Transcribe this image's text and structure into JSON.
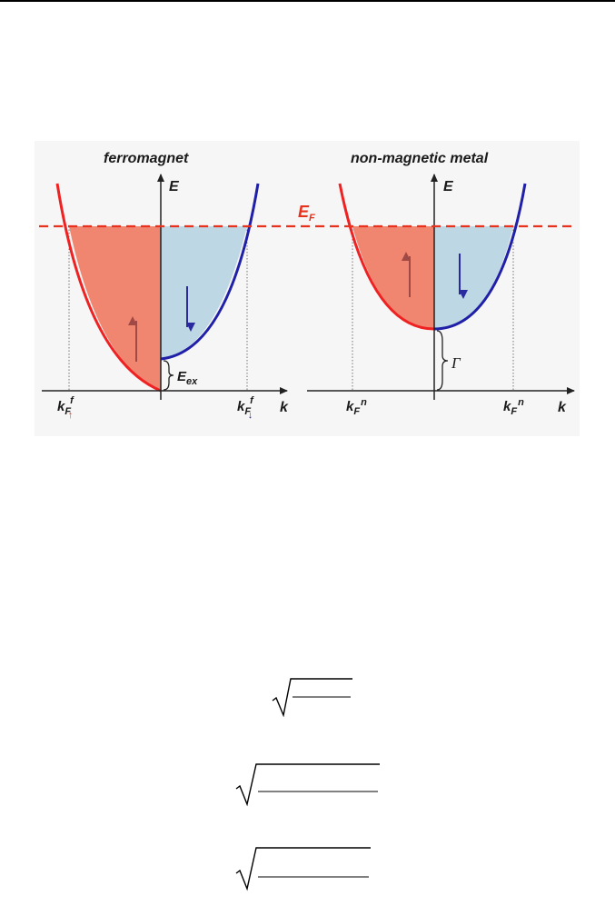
{
  "figure": {
    "left_panel": {
      "title": "ferromagnet",
      "e_axis": "E",
      "k_axis": "k",
      "fermi_label": "E",
      "fermi_sub": "F",
      "gap_label": "E",
      "gap_sub": "ex",
      "kf_left": {
        "base": "k",
        "sub": "F",
        "sup": "f",
        "spin": "↑"
      },
      "kf_right": {
        "base": "k",
        "sub": "F",
        "sup": "f",
        "spin": "↓"
      }
    },
    "right_panel": {
      "title": "non-magnetic metal",
      "e_axis": "E",
      "k_axis": "k",
      "gap_label": "Γ",
      "kf_left": {
        "base": "k",
        "sub": "F",
        "sup": "n"
      },
      "kf_right": {
        "base": "k",
        "sub": "F",
        "sup": "n"
      }
    },
    "colors": {
      "spin_up_fill": "#f08670",
      "spin_down_fill": "#bed7e4",
      "spin_up_line": "#ee2222",
      "spin_down_line": "#1f1fa8",
      "fermi_line": "#e8321e",
      "up_arrow": "#a14a45",
      "down_arrow": "#2a2aa0"
    }
  },
  "formulas": [
    {
      "type": "sqrt",
      "content": ""
    },
    {
      "type": "sqrt",
      "content": ""
    },
    {
      "type": "sqrt",
      "content": ""
    }
  ]
}
